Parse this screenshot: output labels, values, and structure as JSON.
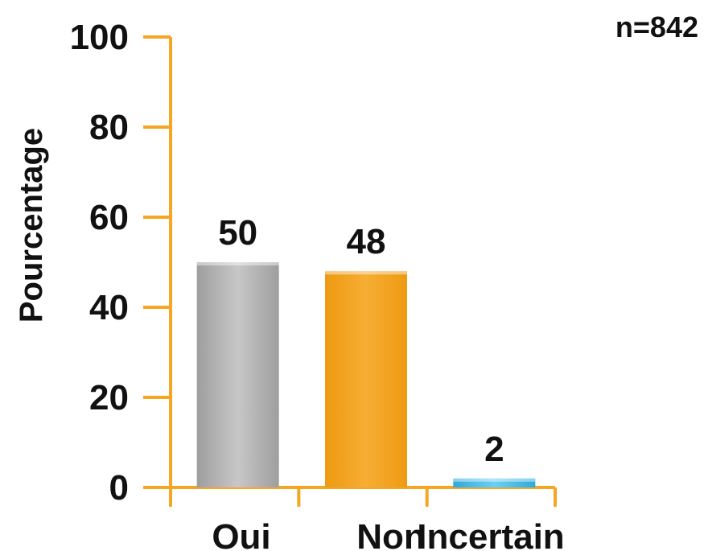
{
  "note": "n=842",
  "colors": {
    "axis": "#F5A623",
    "text": "#111111"
  },
  "chart_data": {
    "type": "bar",
    "title": "",
    "xlabel": "",
    "ylabel": "Pourcentage",
    "ylim": [
      0,
      100
    ],
    "yticks": [
      0,
      20,
      40,
      60,
      80,
      100
    ],
    "categories": [
      "Oui",
      "Non",
      "Incertain"
    ],
    "values": [
      50,
      48,
      2
    ],
    "data_labels": [
      "50",
      "48",
      "2"
    ],
    "bar_colors": [
      "#BDBDBD",
      "#F5A623",
      "#4FC3F7"
    ],
    "grid": false,
    "legend": "none"
  }
}
